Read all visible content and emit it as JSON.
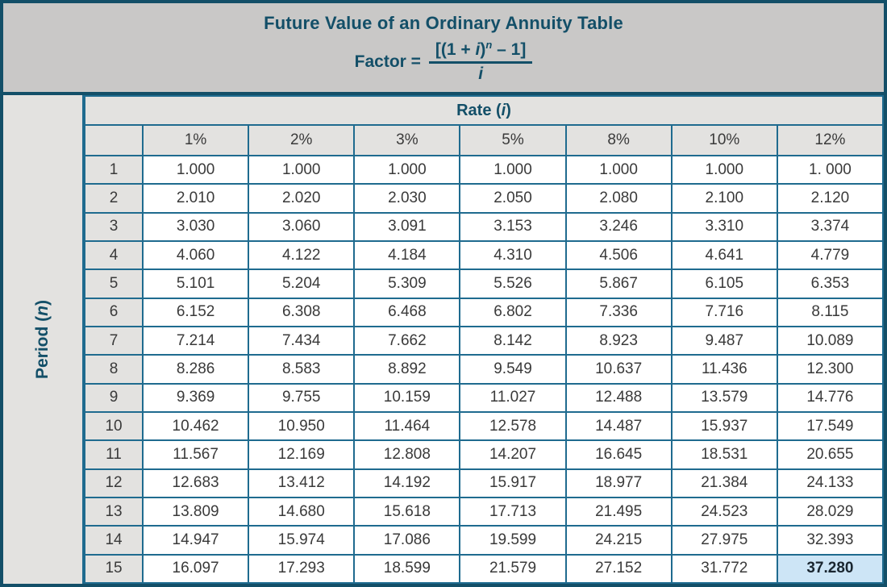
{
  "colors": {
    "frame": "#134f68",
    "grid_line": "#1f6b8f",
    "band_background": "#c9c8c7",
    "header_cell_background": "#e3e2e0",
    "data_cell_background": "#ffffff",
    "accent_text": "#134f68",
    "number_text": "#3a3a3a",
    "highlight_background": "#cde5f6"
  },
  "header": {
    "title": "Future Value of an Ordinary Annuity Table",
    "formula": {
      "label": "Factor =",
      "num_pre": "[(1 + ",
      "num_var": "i",
      "num_mid": ")",
      "num_exp": "n",
      "num_post": " – 1]",
      "denominator": "i"
    }
  },
  "table": {
    "rate_label_pre": "Rate (",
    "rate_label_var": "i",
    "rate_label_post": ")",
    "period_label_pre": "Period (",
    "period_label_var": "n",
    "period_label_post": ")",
    "rate_columns": [
      "1%",
      "2%",
      "3%",
      "5%",
      "8%",
      "10%",
      "12%"
    ],
    "rows": [
      {
        "period": "1",
        "values": [
          "1.000",
          "1.000",
          "1.000",
          "1.000",
          "1.000",
          "1.000",
          "1. 000"
        ]
      },
      {
        "period": "2",
        "values": [
          "2.010",
          "2.020",
          "2.030",
          "2.050",
          "2.080",
          "2.100",
          "2.120"
        ]
      },
      {
        "period": "3",
        "values": [
          "3.030",
          "3.060",
          "3.091",
          "3.153",
          "3.246",
          "3.310",
          "3.374"
        ]
      },
      {
        "period": "4",
        "values": [
          "4.060",
          "4.122",
          "4.184",
          "4.310",
          "4.506",
          "4.641",
          "4.779"
        ]
      },
      {
        "period": "5",
        "values": [
          "5.101",
          "5.204",
          "5.309",
          "5.526",
          "5.867",
          "6.105",
          "6.353"
        ]
      },
      {
        "period": "6",
        "values": [
          "6.152",
          "6.308",
          "6.468",
          "6.802",
          "7.336",
          "7.716",
          "8.115"
        ]
      },
      {
        "period": "7",
        "values": [
          "7.214",
          "7.434",
          "7.662",
          "8.142",
          "8.923",
          "9.487",
          "10.089"
        ]
      },
      {
        "period": "8",
        "values": [
          "8.286",
          "8.583",
          "8.892",
          "9.549",
          "10.637",
          "11.436",
          "12.300"
        ]
      },
      {
        "period": "9",
        "values": [
          "9.369",
          "9.755",
          "10.159",
          "11.027",
          "12.488",
          "13.579",
          "14.776"
        ]
      },
      {
        "period": "10",
        "values": [
          "10.462",
          "10.950",
          "11.464",
          "12.578",
          "14.487",
          "15.937",
          "17.549"
        ]
      },
      {
        "period": "11",
        "values": [
          "11.567",
          "12.169",
          "12.808",
          "14.207",
          "16.645",
          "18.531",
          "20.655"
        ]
      },
      {
        "period": "12",
        "values": [
          "12.683",
          "13.412",
          "14.192",
          "15.917",
          "18.977",
          "21.384",
          "24.133"
        ]
      },
      {
        "period": "13",
        "values": [
          "13.809",
          "14.680",
          "15.618",
          "17.713",
          "21.495",
          "24.523",
          "28.029"
        ]
      },
      {
        "period": "14",
        "values": [
          "14.947",
          "15.974",
          "17.086",
          "19.599",
          "24.215",
          "27.975",
          "32.393"
        ]
      },
      {
        "period": "15",
        "values": [
          "16.097",
          "17.293",
          "18.599",
          "21.579",
          "27.152",
          "31.772",
          "37.280"
        ]
      }
    ],
    "highlight": {
      "period": "15",
      "rate": "12%",
      "value": "37.280"
    }
  }
}
